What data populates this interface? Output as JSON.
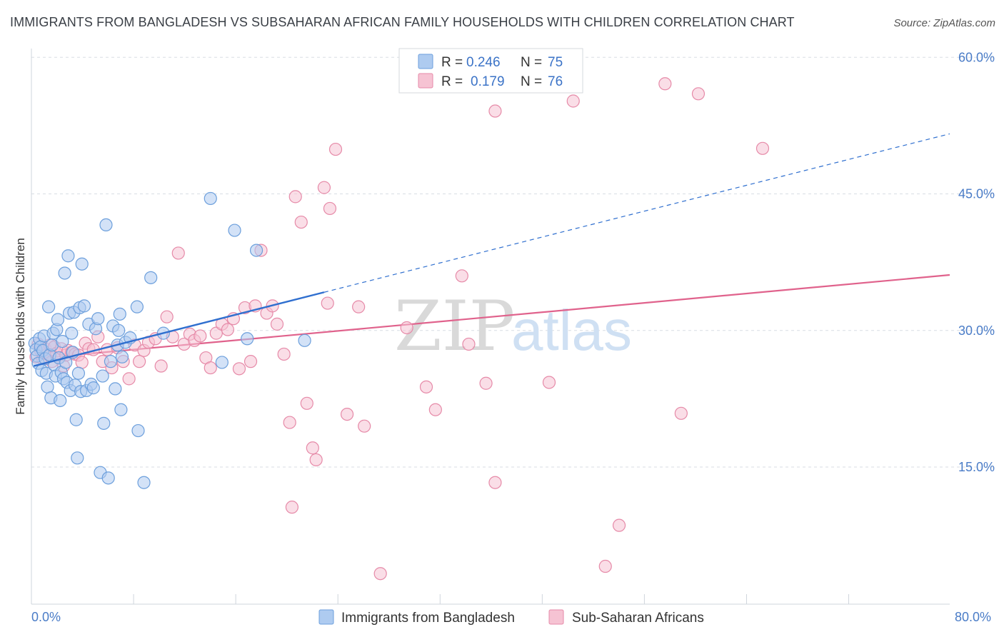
{
  "title": "IMMIGRANTS FROM BANGLADESH VS SUBSAHARAN AFRICAN FAMILY HOUSEHOLDS WITH CHILDREN CORRELATION CHART",
  "source": "Source: ZipAtlas.com",
  "watermark": {
    "zip": "ZIP",
    "atlas": "atlas"
  },
  "colors": {
    "blue_fill": "#aecbf0",
    "blue_stroke": "#6c9fdc",
    "blue_line": "#2f6fcf",
    "pink_fill": "#f6c3d3",
    "pink_stroke": "#e68aa8",
    "pink_line": "#e0628c",
    "grid": "#d8dde3",
    "tick_text": "#4a7cc7"
  },
  "legend": {
    "r_label": "R =",
    "n_label": "N =",
    "rows": [
      {
        "r": "0.246",
        "n": "75"
      },
      {
        "r": "0.179",
        "n": "76"
      }
    ]
  },
  "chart_data": {
    "type": "scatter",
    "title": "IMMIGRANTS FROM BANGLADESH VS SUBSAHARAN AFRICAN FAMILY HOUSEHOLDS WITH CHILDREN CORRELATION CHART",
    "xlabel": "",
    "ylabel": "Family Households with Children",
    "xlim": [
      0,
      80
    ],
    "ylim": [
      0,
      62.5
    ],
    "x_tick_labels": [
      "0.0%",
      "80.0%"
    ],
    "y_ticks": [
      15,
      30,
      45,
      60
    ],
    "y_tick_labels": [
      "15.0%",
      "30.0%",
      "45.0%",
      "60.0%"
    ],
    "grid": "horizontal dashed",
    "legend_position": "top-center",
    "series": [
      {
        "name": "Immigrants from Bangladesh",
        "r": 0.246,
        "n": 75,
        "trend": {
          "x0": 0.2,
          "y0": 26.1,
          "x1": 25.5,
          "y1": 34.2,
          "dashed_to_x": 80,
          "dashed_to_y": 51.6
        },
        "points": [
          [
            0.3,
            28.6
          ],
          [
            0.4,
            27.9
          ],
          [
            0.5,
            27.2
          ],
          [
            0.6,
            26.4
          ],
          [
            0.7,
            29.1
          ],
          [
            0.8,
            28.2
          ],
          [
            0.9,
            25.6
          ],
          [
            1.0,
            27.8
          ],
          [
            1.1,
            29.4
          ],
          [
            1.2,
            26.9
          ],
          [
            1.3,
            25.3
          ],
          [
            1.4,
            23.8
          ],
          [
            1.5,
            32.6
          ],
          [
            1.6,
            27.3
          ],
          [
            1.7,
            22.6
          ],
          [
            1.8,
            28.4
          ],
          [
            1.9,
            29.7
          ],
          [
            2.0,
            26.2
          ],
          [
            2.1,
            25.0
          ],
          [
            2.2,
            30.1
          ],
          [
            2.3,
            31.2
          ],
          [
            2.4,
            27.0
          ],
          [
            2.5,
            22.3
          ],
          [
            2.6,
            25.4
          ],
          [
            2.7,
            28.8
          ],
          [
            2.8,
            24.7
          ],
          [
            2.9,
            36.3
          ],
          [
            3.0,
            26.5
          ],
          [
            3.1,
            24.3
          ],
          [
            3.2,
            38.2
          ],
          [
            3.3,
            31.9
          ],
          [
            3.4,
            23.4
          ],
          [
            3.5,
            29.7
          ],
          [
            3.6,
            27.6
          ],
          [
            3.7,
            32.0
          ],
          [
            3.8,
            24.0
          ],
          [
            3.9,
            20.2
          ],
          [
            4.0,
            16.0
          ],
          [
            4.1,
            25.3
          ],
          [
            4.2,
            32.5
          ],
          [
            4.3,
            23.3
          ],
          [
            4.4,
            37.3
          ],
          [
            4.6,
            32.7
          ],
          [
            4.8,
            23.4
          ],
          [
            5.0,
            30.7
          ],
          [
            5.2,
            24.1
          ],
          [
            5.4,
            23.7
          ],
          [
            5.6,
            30.2
          ],
          [
            5.8,
            31.3
          ],
          [
            6.0,
            14.4
          ],
          [
            6.2,
            25.0
          ],
          [
            6.3,
            19.8
          ],
          [
            6.5,
            41.6
          ],
          [
            6.7,
            13.8
          ],
          [
            6.9,
            26.6
          ],
          [
            7.1,
            30.5
          ],
          [
            7.3,
            23.6
          ],
          [
            7.5,
            28.4
          ],
          [
            7.6,
            30.0
          ],
          [
            7.7,
            31.8
          ],
          [
            7.8,
            21.3
          ],
          [
            7.9,
            27.1
          ],
          [
            8.2,
            28.7
          ],
          [
            8.6,
            29.2
          ],
          [
            9.2,
            32.6
          ],
          [
            9.3,
            19.0
          ],
          [
            9.8,
            13.3
          ],
          [
            10.4,
            35.8
          ],
          [
            11.5,
            29.7
          ],
          [
            15.6,
            44.5
          ],
          [
            16.6,
            26.5
          ],
          [
            17.7,
            41.0
          ],
          [
            18.8,
            29.1
          ],
          [
            19.6,
            38.8
          ],
          [
            23.8,
            28.9
          ]
        ]
      },
      {
        "name": "Sub-Saharan Africans",
        "r": 0.179,
        "n": 76,
        "trend": {
          "x0": 0.2,
          "y0": 26.9,
          "x1": 80,
          "y1": 36.1
        },
        "points": [
          [
            0.4,
            27.1
          ],
          [
            0.6,
            28.5
          ],
          [
            0.8,
            27.8
          ],
          [
            1.0,
            26.9
          ],
          [
            1.2,
            28.0
          ],
          [
            1.4,
            27.4
          ],
          [
            1.6,
            28.4
          ],
          [
            1.8,
            26.6
          ],
          [
            2.0,
            28.2
          ],
          [
            2.2,
            27.5
          ],
          [
            2.4,
            27.0
          ],
          [
            2.6,
            28.0
          ],
          [
            2.8,
            26.1
          ],
          [
            3.0,
            27.3
          ],
          [
            3.2,
            27.8
          ],
          [
            3.5,
            27.6
          ],
          [
            3.8,
            27.4
          ],
          [
            4.1,
            27.3
          ],
          [
            4.4,
            26.5
          ],
          [
            4.7,
            28.6
          ],
          [
            5.0,
            28.0
          ],
          [
            5.4,
            27.9
          ],
          [
            5.8,
            29.3
          ],
          [
            6.2,
            26.6
          ],
          [
            6.6,
            27.9
          ],
          [
            7.0,
            25.9
          ],
          [
            7.5,
            28.1
          ],
          [
            8.0,
            26.6
          ],
          [
            8.5,
            24.7
          ],
          [
            9.0,
            28.4
          ],
          [
            9.4,
            26.6
          ],
          [
            9.8,
            27.8
          ],
          [
            10.2,
            28.7
          ],
          [
            10.8,
            29.1
          ],
          [
            11.3,
            26.1
          ],
          [
            11.8,
            31.5
          ],
          [
            12.3,
            29.3
          ],
          [
            12.8,
            38.5
          ],
          [
            13.3,
            28.5
          ],
          [
            13.8,
            29.6
          ],
          [
            14.2,
            28.9
          ],
          [
            14.7,
            29.4
          ],
          [
            15.2,
            27.0
          ],
          [
            15.6,
            25.9
          ],
          [
            16.1,
            29.7
          ],
          [
            16.6,
            30.7
          ],
          [
            17.1,
            30.1
          ],
          [
            17.6,
            31.3
          ],
          [
            18.1,
            25.8
          ],
          [
            18.6,
            32.5
          ],
          [
            19.1,
            26.6
          ],
          [
            19.5,
            32.7
          ],
          [
            20.0,
            38.8
          ],
          [
            20.5,
            31.9
          ],
          [
            21.0,
            32.7
          ],
          [
            21.4,
            30.7
          ],
          [
            22.0,
            27.4
          ],
          [
            22.5,
            19.9
          ],
          [
            23.0,
            44.7
          ],
          [
            23.5,
            41.9
          ],
          [
            24.0,
            22.0
          ],
          [
            24.5,
            17.1
          ],
          [
            25.5,
            45.7
          ],
          [
            26.5,
            49.9
          ],
          [
            27.5,
            20.8
          ],
          [
            28.5,
            32.6
          ],
          [
            29.0,
            19.5
          ],
          [
            30.4,
            3.3
          ],
          [
            32.7,
            30.3
          ],
          [
            34.4,
            23.8
          ],
          [
            35.2,
            21.3
          ],
          [
            37.5,
            36.0
          ],
          [
            38.1,
            28.5
          ],
          [
            46.6,
            57.1
          ],
          [
            56.6,
            20.9
          ],
          [
            63.7,
            50.0
          ]
        ],
        "extra_points": [
          [
            33.8,
            58.3
          ],
          [
            40.4,
            54.1
          ],
          [
            47.2,
            55.2
          ],
          [
            45.1,
            24.3
          ],
          [
            58.1,
            56.0
          ],
          [
            55.2,
            57.1
          ],
          [
            51.2,
            8.6
          ],
          [
            50.0,
            4.1
          ],
          [
            40.4,
            13.3
          ],
          [
            39.6,
            24.2
          ],
          [
            26.0,
            43.4
          ],
          [
            22.7,
            10.6
          ],
          [
            25.8,
            33.0
          ],
          [
            24.8,
            15.8
          ]
        ]
      }
    ]
  },
  "axis": {
    "x_min_label": "0.0%",
    "x_max_label": "80.0%",
    "y_label": "Family Households with Children",
    "y_tick_labels": [
      "15.0%",
      "30.0%",
      "45.0%",
      "60.0%"
    ]
  },
  "bottom_legend": {
    "items": [
      "Immigrants from Bangladesh",
      "Sub-Saharan Africans"
    ]
  }
}
